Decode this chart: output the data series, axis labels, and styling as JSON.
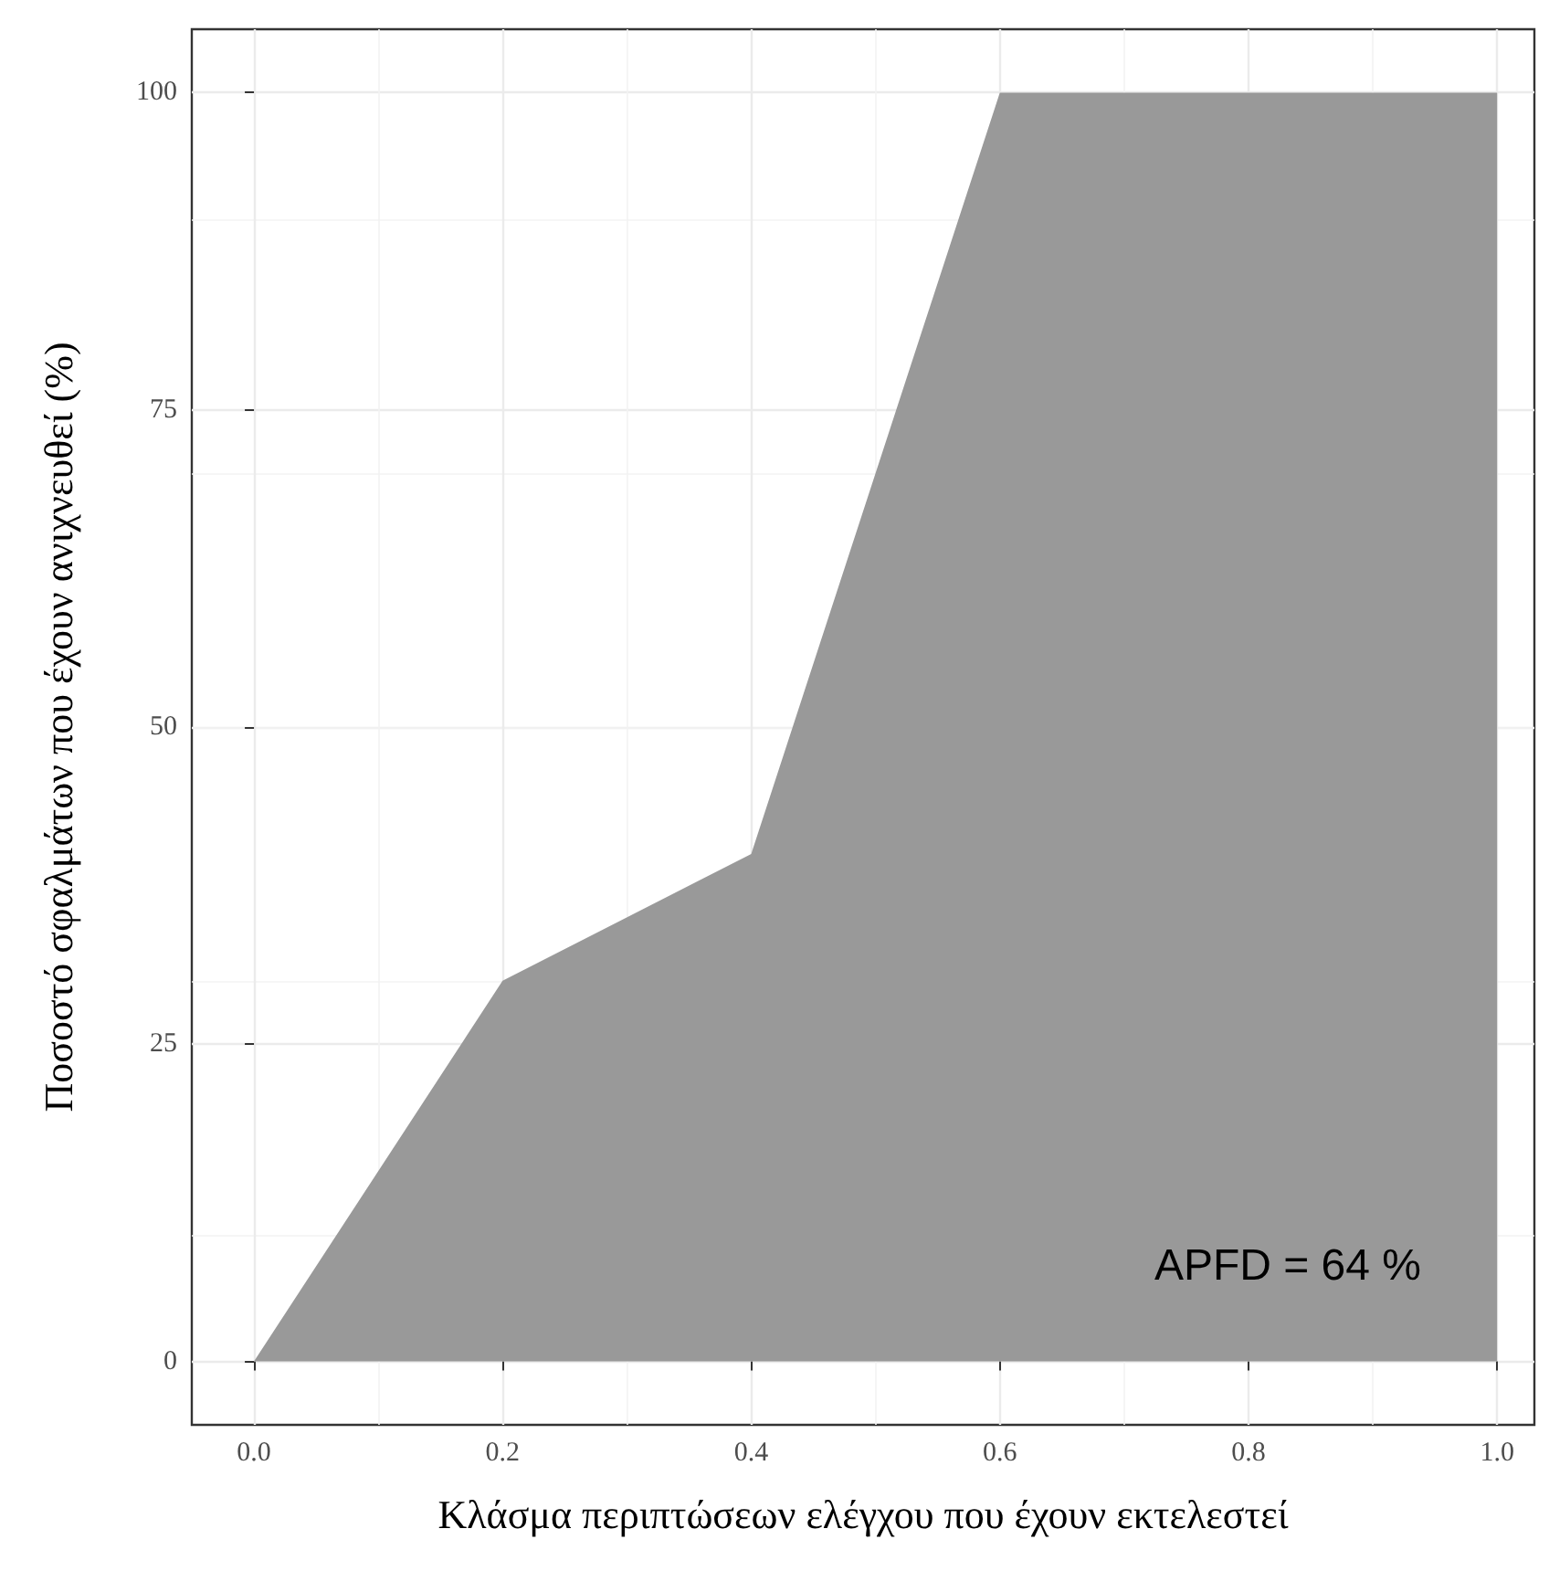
{
  "chart_data": {
    "type": "area",
    "xlabel": "Κλάσμα περιπτώσεων ελέγχου που έχουν εκτελεστεί",
    "ylabel": "Ποσοστό σφαλμάτων που έχουν ανιχνευθεί (%)",
    "x": [
      0,
      0.2,
      0.4,
      0.6,
      1.0
    ],
    "values": [
      0,
      30,
      40,
      100,
      100
    ],
    "color": "#999999",
    "xlim": [
      -0.05,
      1.03
    ],
    "xticks": [
      {
        "value": 0,
        "label": "0.0"
      },
      0.2,
      0.4,
      0.6,
      0.8,
      {
        "value": 1,
        "label": "1.0"
      }
    ],
    "ylim": [
      -5,
      105
    ],
    "yticks": [
      0,
      25,
      50,
      75,
      100
    ],
    "grid": true,
    "annotations": [
      "APFD = 64 %"
    ]
  }
}
